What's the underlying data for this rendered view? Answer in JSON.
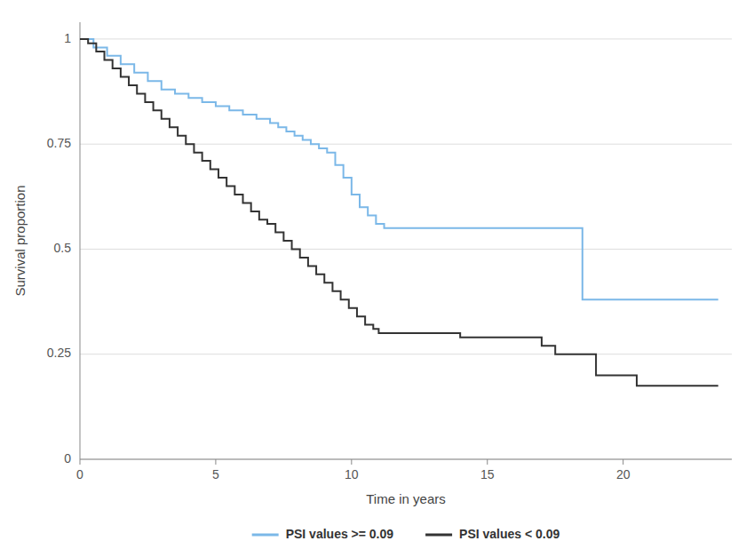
{
  "chart_data": {
    "type": "step",
    "x_label": "Time in years",
    "y_label": "Survival proportion",
    "series": [
      {
        "name": "PSI values >= 0.09",
        "color": "#7bb8e8",
        "x": [
          0,
          0.5,
          1.0,
          1.5,
          2.0,
          2.5,
          3.0,
          3.5,
          4.0,
          4.5,
          5.0,
          5.5,
          6.0,
          6.5,
          7.0,
          7.3,
          7.6,
          7.9,
          8.2,
          8.5,
          8.8,
          9.1,
          9.4,
          9.7,
          10.0,
          10.3,
          10.6,
          10.9,
          11.2,
          18.0,
          18.5,
          23.5
        ],
        "values": [
          1.0,
          0.98,
          0.96,
          0.94,
          0.92,
          0.9,
          0.88,
          0.87,
          0.86,
          0.85,
          0.84,
          0.83,
          0.82,
          0.81,
          0.8,
          0.79,
          0.78,
          0.77,
          0.76,
          0.75,
          0.74,
          0.73,
          0.7,
          0.67,
          0.63,
          0.6,
          0.58,
          0.56,
          0.55,
          0.55,
          0.38,
          0.38
        ]
      },
      {
        "name": "PSI values < 0.09",
        "color": "#333333",
        "x": [
          0,
          0.3,
          0.6,
          0.9,
          1.2,
          1.5,
          1.8,
          2.1,
          2.4,
          2.7,
          3.0,
          3.3,
          3.6,
          3.9,
          4.2,
          4.5,
          4.8,
          5.1,
          5.4,
          5.7,
          6.0,
          6.3,
          6.6,
          6.9,
          7.2,
          7.5,
          7.8,
          8.1,
          8.4,
          8.7,
          9.0,
          9.3,
          9.6,
          9.9,
          10.2,
          10.5,
          10.8,
          11.0,
          11.3,
          11.6,
          12.0,
          12.5,
          13.0,
          14.0,
          15.0,
          17.0,
          17.5,
          18.0,
          19.0,
          20.5,
          21.0,
          23.5
        ],
        "values": [
          1.0,
          0.99,
          0.97,
          0.95,
          0.93,
          0.91,
          0.89,
          0.87,
          0.85,
          0.83,
          0.81,
          0.79,
          0.77,
          0.75,
          0.73,
          0.71,
          0.69,
          0.67,
          0.65,
          0.63,
          0.61,
          0.59,
          0.57,
          0.56,
          0.54,
          0.52,
          0.5,
          0.48,
          0.46,
          0.44,
          0.42,
          0.4,
          0.38,
          0.36,
          0.34,
          0.32,
          0.31,
          0.3,
          0.3,
          0.3,
          0.3,
          0.3,
          0.3,
          0.29,
          0.29,
          0.27,
          0.25,
          0.25,
          0.2,
          0.175,
          0.175,
          0.175
        ]
      }
    ],
    "xlim": [
      0,
      24
    ],
    "xticks": [
      0,
      5,
      10,
      15,
      20
    ],
    "ylim": [
      0,
      1.04
    ],
    "yticks": [
      0,
      0.25,
      0.5,
      0.75,
      1
    ],
    "grid": true,
    "legend": "bottom"
  }
}
